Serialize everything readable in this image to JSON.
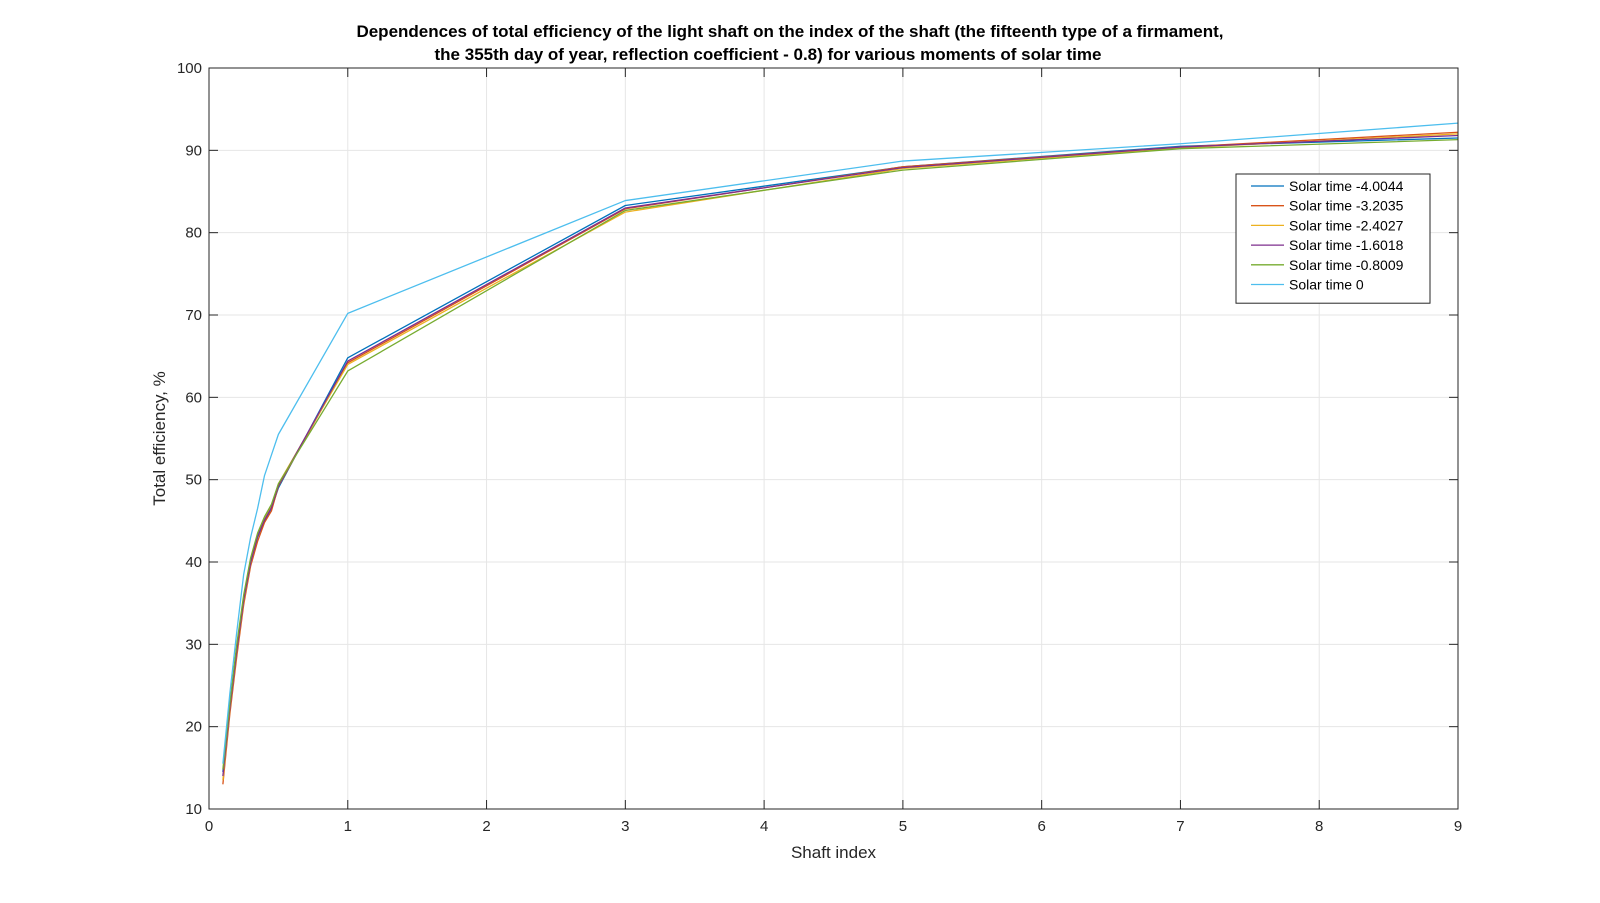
{
  "chart_data": {
    "type": "line",
    "title_lines": [
      "Dependences of total efficiency of the light shaft on the index of the shaft (the fifteenth type of a firmament,",
      "the 355th day of year, reflection coefficient - 0.8) for various moments of solar time"
    ],
    "xlabel": "Shaft index",
    "ylabel": "Total efficiency, %",
    "xlim": [
      0,
      9
    ],
    "ylim": [
      10,
      100
    ],
    "xticks": [
      0,
      1,
      2,
      3,
      4,
      5,
      6,
      7,
      8,
      9
    ],
    "yticks": [
      10,
      20,
      30,
      40,
      50,
      60,
      70,
      80,
      90,
      100
    ],
    "grid": true,
    "legend_position": "top-right",
    "x": [
      0.1,
      0.15,
      0.2,
      0.25,
      0.3,
      0.35,
      0.4,
      0.45,
      0.5,
      1,
      3,
      5,
      7,
      9
    ],
    "series": [
      {
        "name": "Solar time -4.0044",
        "color": "#0072BD",
        "values": [
          14.5,
          22.5,
          29.5,
          35.5,
          40.0,
          43.0,
          45.0,
          46.5,
          49.0,
          64.8,
          83.3,
          88.0,
          90.5,
          91.5
        ]
      },
      {
        "name": "Solar time -3.2035",
        "color": "#D95319",
        "values": [
          13.0,
          21.5,
          28.5,
          34.8,
          39.5,
          42.5,
          44.8,
          46.2,
          49.2,
          64.2,
          82.9,
          88.0,
          90.4,
          92.2
        ]
      },
      {
        "name": "Solar time -2.4027",
        "color": "#EDB120",
        "values": [
          13.5,
          22.0,
          29.0,
          35.2,
          39.8,
          43.2,
          45.3,
          46.8,
          49.5,
          64.0,
          82.5,
          87.8,
          90.3,
          92.0
        ]
      },
      {
        "name": "Solar time -1.6018",
        "color": "#7E2F8E",
        "values": [
          14.0,
          22.2,
          29.2,
          35.4,
          39.9,
          43.1,
          45.1,
          46.6,
          49.3,
          64.4,
          83.0,
          87.9,
          90.4,
          91.8
        ]
      },
      {
        "name": "Solar time -0.8009",
        "color": "#77AC30",
        "values": [
          14.8,
          22.8,
          30.0,
          36.0,
          40.5,
          43.5,
          45.5,
          47.0,
          49.5,
          63.2,
          82.7,
          87.6,
          90.2,
          91.3
        ]
      },
      {
        "name": "Solar time 0",
        "color": "#4DBEEE",
        "values": [
          15.5,
          24.0,
          31.5,
          38.5,
          43.0,
          46.5,
          50.5,
          53.0,
          55.5,
          70.2,
          83.9,
          88.7,
          90.8,
          93.3
        ]
      }
    ]
  }
}
